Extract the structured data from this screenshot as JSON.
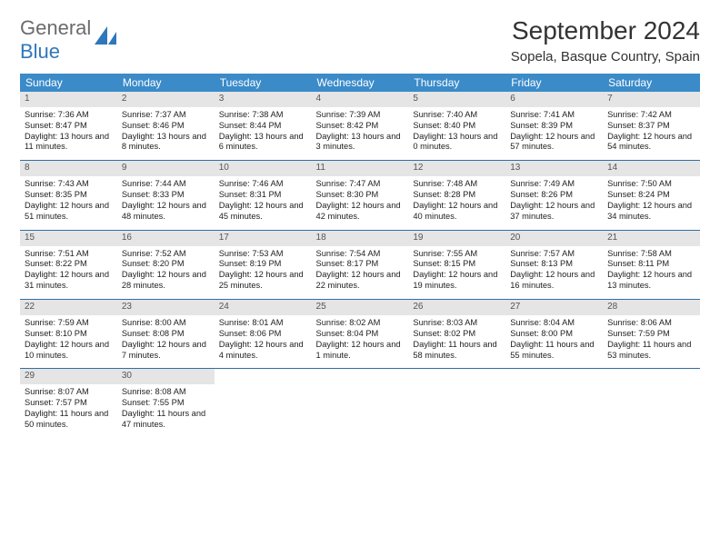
{
  "logo": {
    "text1": "General",
    "text2": "Blue"
  },
  "title": "September 2024",
  "location": "Sopela, Basque Country, Spain",
  "colors": {
    "header_bg": "#3b8bc9",
    "header_fg": "#ffffff",
    "daynum_bg": "#e5e5e5",
    "row_border": "#2f6fa8",
    "logo_gray": "#6b6b6b",
    "logo_blue": "#2f77bb"
  },
  "columns": [
    "Sunday",
    "Monday",
    "Tuesday",
    "Wednesday",
    "Thursday",
    "Friday",
    "Saturday"
  ],
  "weeks": [
    [
      {
        "n": "1",
        "sr": "7:36 AM",
        "ss": "8:47 PM",
        "dl": "13 hours and 11 minutes."
      },
      {
        "n": "2",
        "sr": "7:37 AM",
        "ss": "8:46 PM",
        "dl": "13 hours and 8 minutes."
      },
      {
        "n": "3",
        "sr": "7:38 AM",
        "ss": "8:44 PM",
        "dl": "13 hours and 6 minutes."
      },
      {
        "n": "4",
        "sr": "7:39 AM",
        "ss": "8:42 PM",
        "dl": "13 hours and 3 minutes."
      },
      {
        "n": "5",
        "sr": "7:40 AM",
        "ss": "8:40 PM",
        "dl": "13 hours and 0 minutes."
      },
      {
        "n": "6",
        "sr": "7:41 AM",
        "ss": "8:39 PM",
        "dl": "12 hours and 57 minutes."
      },
      {
        "n": "7",
        "sr": "7:42 AM",
        "ss": "8:37 PM",
        "dl": "12 hours and 54 minutes."
      }
    ],
    [
      {
        "n": "8",
        "sr": "7:43 AM",
        "ss": "8:35 PM",
        "dl": "12 hours and 51 minutes."
      },
      {
        "n": "9",
        "sr": "7:44 AM",
        "ss": "8:33 PM",
        "dl": "12 hours and 48 minutes."
      },
      {
        "n": "10",
        "sr": "7:46 AM",
        "ss": "8:31 PM",
        "dl": "12 hours and 45 minutes."
      },
      {
        "n": "11",
        "sr": "7:47 AM",
        "ss": "8:30 PM",
        "dl": "12 hours and 42 minutes."
      },
      {
        "n": "12",
        "sr": "7:48 AM",
        "ss": "8:28 PM",
        "dl": "12 hours and 40 minutes."
      },
      {
        "n": "13",
        "sr": "7:49 AM",
        "ss": "8:26 PM",
        "dl": "12 hours and 37 minutes."
      },
      {
        "n": "14",
        "sr": "7:50 AM",
        "ss": "8:24 PM",
        "dl": "12 hours and 34 minutes."
      }
    ],
    [
      {
        "n": "15",
        "sr": "7:51 AM",
        "ss": "8:22 PM",
        "dl": "12 hours and 31 minutes."
      },
      {
        "n": "16",
        "sr": "7:52 AM",
        "ss": "8:20 PM",
        "dl": "12 hours and 28 minutes."
      },
      {
        "n": "17",
        "sr": "7:53 AM",
        "ss": "8:19 PM",
        "dl": "12 hours and 25 minutes."
      },
      {
        "n": "18",
        "sr": "7:54 AM",
        "ss": "8:17 PM",
        "dl": "12 hours and 22 minutes."
      },
      {
        "n": "19",
        "sr": "7:55 AM",
        "ss": "8:15 PM",
        "dl": "12 hours and 19 minutes."
      },
      {
        "n": "20",
        "sr": "7:57 AM",
        "ss": "8:13 PM",
        "dl": "12 hours and 16 minutes."
      },
      {
        "n": "21",
        "sr": "7:58 AM",
        "ss": "8:11 PM",
        "dl": "12 hours and 13 minutes."
      }
    ],
    [
      {
        "n": "22",
        "sr": "7:59 AM",
        "ss": "8:10 PM",
        "dl": "12 hours and 10 minutes."
      },
      {
        "n": "23",
        "sr": "8:00 AM",
        "ss": "8:08 PM",
        "dl": "12 hours and 7 minutes."
      },
      {
        "n": "24",
        "sr": "8:01 AM",
        "ss": "8:06 PM",
        "dl": "12 hours and 4 minutes."
      },
      {
        "n": "25",
        "sr": "8:02 AM",
        "ss": "8:04 PM",
        "dl": "12 hours and 1 minute."
      },
      {
        "n": "26",
        "sr": "8:03 AM",
        "ss": "8:02 PM",
        "dl": "11 hours and 58 minutes."
      },
      {
        "n": "27",
        "sr": "8:04 AM",
        "ss": "8:00 PM",
        "dl": "11 hours and 55 minutes."
      },
      {
        "n": "28",
        "sr": "8:06 AM",
        "ss": "7:59 PM",
        "dl": "11 hours and 53 minutes."
      }
    ],
    [
      {
        "n": "29",
        "sr": "8:07 AM",
        "ss": "7:57 PM",
        "dl": "11 hours and 50 minutes."
      },
      {
        "n": "30",
        "sr": "8:08 AM",
        "ss": "7:55 PM",
        "dl": "11 hours and 47 minutes."
      },
      null,
      null,
      null,
      null,
      null
    ]
  ],
  "labels": {
    "sunrise": "Sunrise:",
    "sunset": "Sunset:",
    "daylight": "Daylight:"
  }
}
